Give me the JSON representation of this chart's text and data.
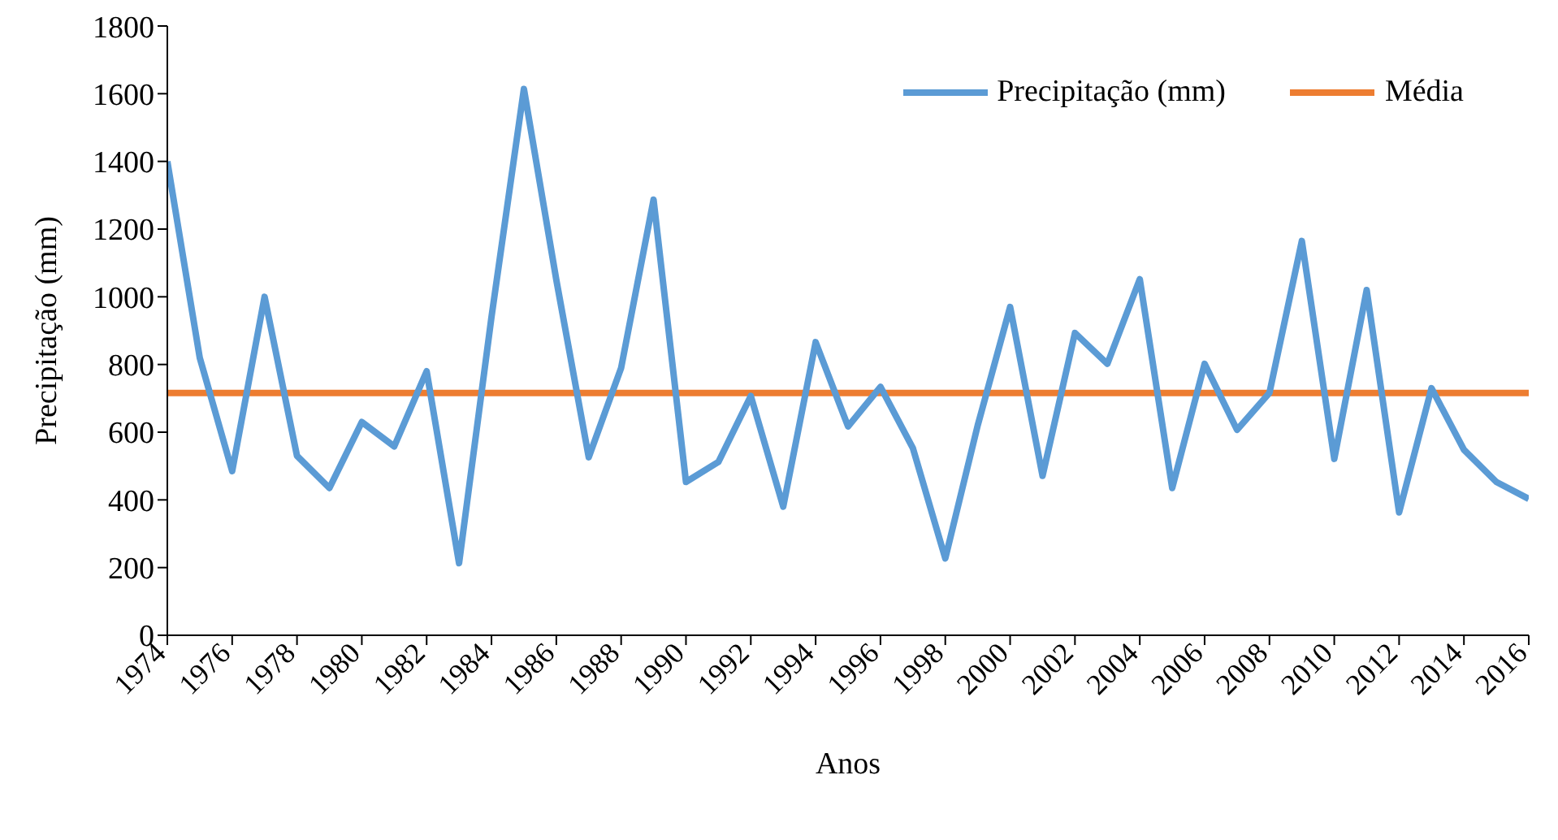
{
  "chart_data": {
    "type": "line",
    "xlabel": "Anos",
    "ylabel": "Precipitação (mm)",
    "x": [
      1974,
      1975,
      1976,
      1977,
      1978,
      1979,
      1980,
      1981,
      1982,
      1983,
      1984,
      1985,
      1986,
      1987,
      1988,
      1989,
      1990,
      1991,
      1992,
      1993,
      1994,
      1995,
      1996,
      1997,
      1998,
      1999,
      2000,
      2001,
      2002,
      2003,
      2004,
      2005,
      2006,
      2007,
      2008,
      2009,
      2010,
      2011,
      2012,
      2013,
      2014,
      2015,
      2016
    ],
    "series": [
      {
        "name": "Precipitação (mm)",
        "color": "#5b9bd5",
        "values": [
          1400,
          820,
          485,
          1000,
          530,
          435,
          630,
          558,
          780,
          213,
          940,
          1614,
          1050,
          526,
          790,
          1287,
          453,
          512,
          707,
          380,
          866,
          617,
          734,
          553,
          227,
          620,
          970,
          471,
          893,
          802,
          1052,
          435,
          802,
          607,
          716,
          1165,
          521,
          1020,
          363,
          730,
          548,
          453,
          403
        ]
      }
    ],
    "ref_lines": [
      {
        "axis": "y",
        "value": 716,
        "label": "Média",
        "color": "#ed7d31"
      }
    ],
    "xlim": [
      1974,
      2016
    ],
    "xticks": [
      1974,
      1976,
      1978,
      1980,
      1982,
      1984,
      1986,
      1988,
      1990,
      1992,
      1994,
      1996,
      1998,
      2000,
      2002,
      2004,
      2006,
      2008,
      2010,
      2012,
      2014,
      2016
    ],
    "ylim": [
      0,
      1800
    ],
    "yticks": [
      0,
      200,
      400,
      600,
      800,
      1000,
      1200,
      1400,
      1600,
      1800
    ],
    "grid": false,
    "legend": "top right",
    "marker": "none",
    "line_style": "solid"
  }
}
